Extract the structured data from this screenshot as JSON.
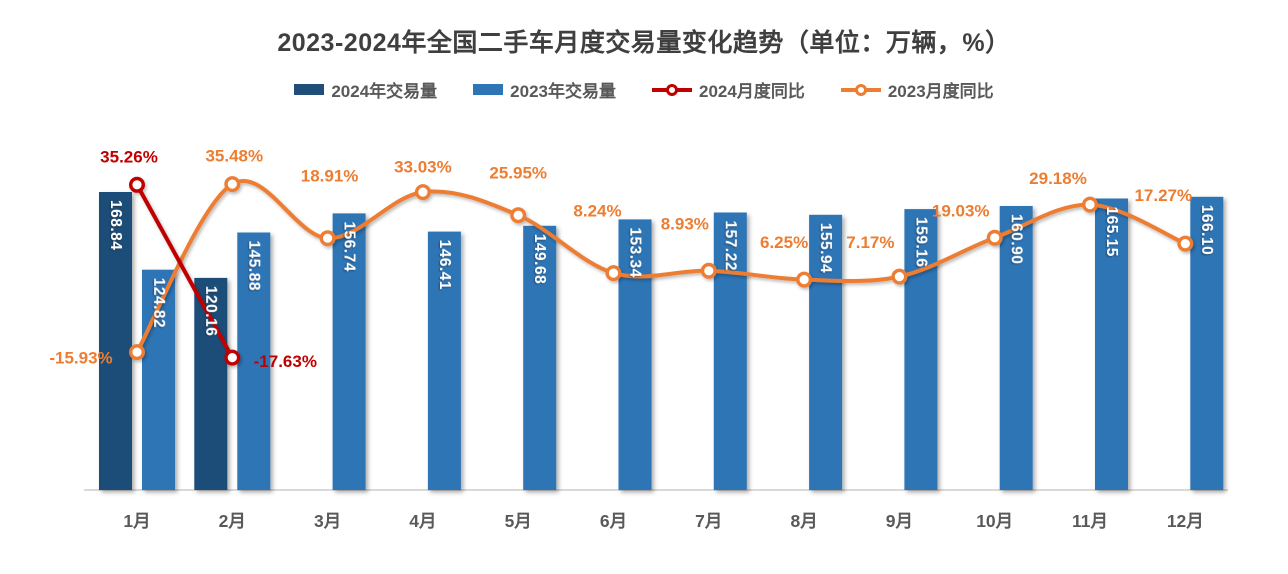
{
  "chart_data": {
    "type": "combo-bar-line",
    "title": "2023-2024年全国二手车月度交易量变化趋势（单位：万辆，%）",
    "categories": [
      "1月",
      "2月",
      "3月",
      "4月",
      "5月",
      "6月",
      "7月",
      "8月",
      "9月",
      "10月",
      "11月",
      "12月"
    ],
    "series": [
      {
        "name": "2024年交易量",
        "kind": "bar",
        "unit": "万辆",
        "color": "#1F4E79",
        "values": [
          168.84,
          120.16,
          null,
          null,
          null,
          null,
          null,
          null,
          null,
          null,
          null,
          null
        ]
      },
      {
        "name": "2023年交易量",
        "kind": "bar",
        "unit": "万辆",
        "color": "#2E75B6",
        "values": [
          124.82,
          145.88,
          156.74,
          146.41,
          149.68,
          153.34,
          157.22,
          155.94,
          159.16,
          160.9,
          165.15,
          166.1
        ]
      },
      {
        "name": "2024月度同比",
        "kind": "line",
        "unit": "%",
        "color": "#C00000",
        "values": [
          35.26,
          -17.63,
          null,
          null,
          null,
          null,
          null,
          null,
          null,
          null,
          null,
          null
        ],
        "label_offsets": [
          [
            -8,
            -28
          ],
          [
            53,
            4
          ],
          null,
          null,
          null,
          null,
          null,
          null,
          null,
          null,
          null,
          null
        ]
      },
      {
        "name": "2023月度同比",
        "kind": "line",
        "unit": "%",
        "color": "#ED7D31",
        "values": [
          -15.93,
          35.48,
          18.91,
          33.03,
          25.95,
          8.24,
          8.93,
          6.25,
          7.17,
          19.03,
          29.18,
          17.27
        ],
        "label_offsets": [
          [
            -56,
            6
          ],
          [
            2,
            -28
          ],
          [
            2,
            -62
          ],
          [
            0,
            -25
          ],
          [
            0,
            -42
          ],
          [
            -16,
            -62
          ],
          [
            -24,
            -47
          ],
          [
            -20,
            -37
          ],
          [
            -29,
            -34
          ],
          [
            -34,
            -27
          ],
          [
            -32,
            -26
          ],
          [
            -22,
            -48
          ]
        ]
      }
    ],
    "value_label_decimals": 2,
    "pct_label_decimals": 2,
    "axes": {
      "x": {
        "labels_visible": true
      },
      "y_left": {
        "visible": false,
        "unit": "万辆",
        "approx_range": [
          0,
          277
        ]
      },
      "y_right": {
        "visible": false,
        "unit": "%",
        "approx_range": [
          -58,
          60
        ]
      }
    },
    "grid": false,
    "legend_position": "top",
    "bar_label_color": "#ffffff",
    "axis_line_color": "#D9D9D9",
    "x_label_color": "#595959"
  },
  "legend": {
    "items": [
      {
        "label": "2024年交易量",
        "marker": "bar",
        "color": "#1F4E79"
      },
      {
        "label": "2023年交易量",
        "marker": "bar",
        "color": "#2E75B6"
      },
      {
        "label": "2024月度同比",
        "marker": "line",
        "color": "#C00000"
      },
      {
        "label": "2023月度同比",
        "marker": "line",
        "color": "#ED7D31"
      }
    ]
  }
}
